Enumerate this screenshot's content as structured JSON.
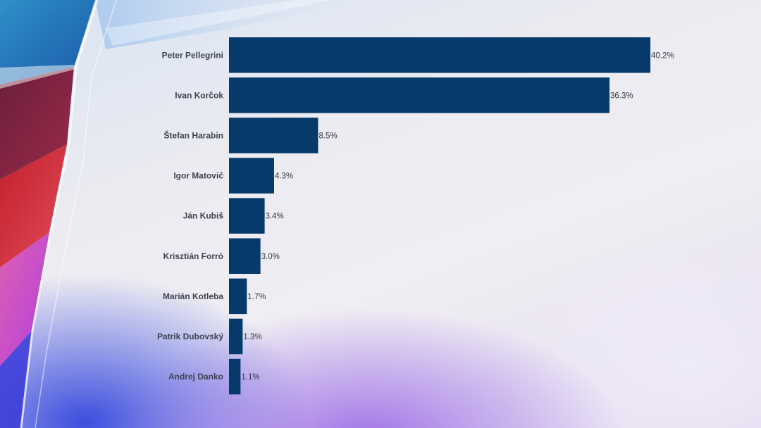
{
  "chart_data": {
    "type": "bar",
    "orientation": "horizontal",
    "categories": [
      "Peter Pellegrini",
      "Ivan Korčok",
      "Štefan Harabin",
      "Igor Matovič",
      "Ján Kubiš",
      "Krisztián Forró",
      "Marián Kotleba",
      "Patrik Dubovský",
      "Andrej Danko"
    ],
    "values": [
      40.2,
      36.3,
      8.5,
      4.3,
      3.4,
      3.0,
      1.7,
      1.3,
      1.1
    ],
    "value_labels": [
      "40.2%",
      "36.3%",
      "8.5%",
      "4.3%",
      "3.4%",
      "3.0%",
      "1.7%",
      "1.3%",
      "1.1%"
    ],
    "xlim": [
      0,
      40.2
    ],
    "grid": false,
    "legend": "none",
    "bar_color": "#053a6b"
  }
}
